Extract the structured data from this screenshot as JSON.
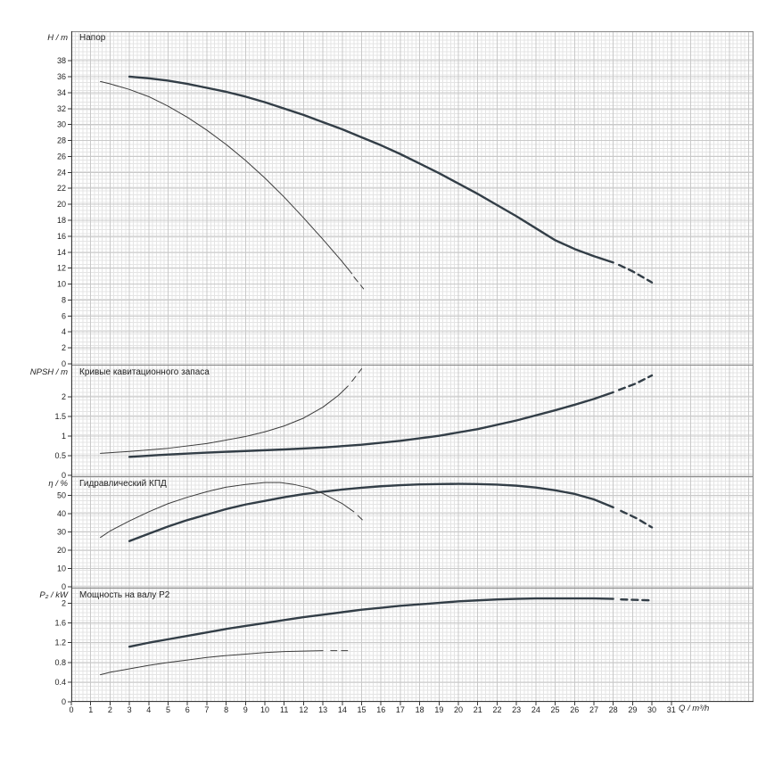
{
  "chart": {
    "x_axis": {
      "label": "Q / m³/h",
      "ticks": [
        0,
        1,
        2,
        3,
        4,
        5,
        6,
        7,
        8,
        9,
        10,
        11,
        12,
        13,
        14,
        15,
        16,
        17,
        18,
        19,
        20,
        21,
        22,
        23,
        24,
        25,
        26,
        27,
        28,
        29,
        30,
        31
      ],
      "xlim": [
        0,
        35.25
      ]
    },
    "colors": {
      "curve_main": "#333e47",
      "curve_thin": "#3c3c3c",
      "grid_minor": "#e4e4e4",
      "grid_major": "#c9c9c9",
      "frame": "#8c8c8c",
      "axis": "#3a3a3a",
      "text": "#1f1f1f"
    }
  },
  "chart_data": [
    {
      "type": "line",
      "name": "head",
      "title": "Напор",
      "ylabel": "H / m",
      "xlabel": "Q / m³/h",
      "ylim": [
        0,
        41.7
      ],
      "yticks": [
        0,
        2,
        4,
        6,
        8,
        10,
        12,
        14,
        16,
        18,
        20,
        22,
        24,
        26,
        28,
        30,
        32,
        34,
        36,
        38
      ],
      "series": [
        {
          "name": "duty-curve",
          "weight": "thick",
          "points": [
            [
              3,
              36.0
            ],
            [
              4,
              35.8
            ],
            [
              5,
              35.5
            ],
            [
              6,
              35.1
            ],
            [
              7,
              34.6
            ],
            [
              8,
              34.1
            ],
            [
              9,
              33.5
            ],
            [
              10,
              32.8
            ],
            [
              11,
              32.0
            ],
            [
              12,
              31.2
            ],
            [
              13,
              30.3
            ],
            [
              14,
              29.4
            ],
            [
              15,
              28.4
            ],
            [
              16,
              27.4
            ],
            [
              17,
              26.3
            ],
            [
              18,
              25.1
            ],
            [
              19,
              23.9
            ],
            [
              20,
              22.6
            ],
            [
              21,
              21.3
            ],
            [
              22,
              19.9
            ],
            [
              23,
              18.5
            ],
            [
              24,
              17.0
            ],
            [
              25,
              15.5
            ],
            [
              26,
              14.4
            ],
            [
              27,
              13.5
            ],
            [
              28,
              12.7
            ]
          ],
          "dashed_tail": [
            [
              28.3,
              12.4
            ],
            [
              29,
              11.6
            ],
            [
              30,
              10.2
            ]
          ]
        },
        {
          "name": "reduced-speed-curve",
          "weight": "thin",
          "points": [
            [
              1.5,
              35.4
            ],
            [
              2,
              35.1
            ],
            [
              3,
              34.4
            ],
            [
              4,
              33.5
            ],
            [
              5,
              32.3
            ],
            [
              6,
              30.9
            ],
            [
              7,
              29.3
            ],
            [
              8,
              27.5
            ],
            [
              9,
              25.5
            ],
            [
              10,
              23.3
            ],
            [
              11,
              20.9
            ],
            [
              12,
              18.3
            ],
            [
              13,
              15.6
            ],
            [
              14,
              12.8
            ],
            [
              14.5,
              11.3
            ]
          ],
          "dashed_tail": [
            [
              14.6,
              10.9
            ],
            [
              15.1,
              9.4
            ]
          ]
        }
      ]
    },
    {
      "type": "line",
      "name": "npsh",
      "title": "Кривые кавитационного запаса",
      "ylabel": "NPSH / m",
      "xlabel": "Q / m³/h",
      "ylim": [
        0,
        2.8
      ],
      "yticks": [
        0,
        0.5,
        1,
        1.5,
        2
      ],
      "series": [
        {
          "name": "duty-curve",
          "weight": "thick",
          "points": [
            [
              3,
              0.47
            ],
            [
              5,
              0.53
            ],
            [
              7,
              0.58
            ],
            [
              9,
              0.62
            ],
            [
              11,
              0.66
            ],
            [
              13,
              0.71
            ],
            [
              15,
              0.78
            ],
            [
              17,
              0.88
            ],
            [
              19,
              1.01
            ],
            [
              21,
              1.18
            ],
            [
              23,
              1.4
            ],
            [
              25,
              1.66
            ],
            [
              26,
              1.8
            ],
            [
              27,
              1.95
            ],
            [
              28,
              2.12
            ]
          ],
          "dashed_tail": [
            [
              28.3,
              2.18
            ],
            [
              29.2,
              2.35
            ],
            [
              30,
              2.55
            ]
          ]
        },
        {
          "name": "reduced-speed-curve",
          "weight": "thin",
          "points": [
            [
              1.5,
              0.56
            ],
            [
              3,
              0.61
            ],
            [
              5,
              0.69
            ],
            [
              7,
              0.81
            ],
            [
              9,
              0.99
            ],
            [
              10,
              1.11
            ],
            [
              11,
              1.26
            ],
            [
              12,
              1.46
            ],
            [
              13,
              1.74
            ],
            [
              13.8,
              2.04
            ],
            [
              14.3,
              2.28
            ]
          ],
          "dashed_tail": [
            [
              14.5,
              2.4
            ],
            [
              15,
              2.72
            ]
          ]
        }
      ]
    },
    {
      "type": "line",
      "name": "efficiency",
      "title": "Гидравлический КПД",
      "ylabel": "η / %",
      "xlabel": "Q / m³/h",
      "ylim": [
        0,
        60
      ],
      "yticks": [
        0,
        10,
        20,
        30,
        40,
        50
      ],
      "series": [
        {
          "name": "duty-curve",
          "weight": "thick",
          "points": [
            [
              3,
              25
            ],
            [
              4,
              29
            ],
            [
              5,
              33
            ],
            [
              6,
              36.5
            ],
            [
              7,
              39.5
            ],
            [
              8,
              42.5
            ],
            [
              9,
              45
            ],
            [
              10,
              47
            ],
            [
              11,
              49
            ],
            [
              12,
              50.7
            ],
            [
              13,
              52
            ],
            [
              14,
              53.2
            ],
            [
              15,
              54.2
            ],
            [
              16,
              55
            ],
            [
              17,
              55.6
            ],
            [
              18,
              56
            ],
            [
              19,
              56.2
            ],
            [
              20,
              56.3
            ],
            [
              21,
              56.2
            ],
            [
              22,
              55.9
            ],
            [
              23,
              55.3
            ],
            [
              24,
              54.3
            ],
            [
              25,
              52.8
            ],
            [
              26,
              50.8
            ],
            [
              27,
              47.8
            ],
            [
              28,
              43.5
            ]
          ],
          "dashed_tail": [
            [
              28.4,
              41.5
            ],
            [
              29.2,
              37.5
            ],
            [
              30,
              32.5
            ]
          ]
        },
        {
          "name": "reduced-speed-curve",
          "weight": "thin",
          "points": [
            [
              1.5,
              27
            ],
            [
              2,
              30.5
            ],
            [
              3,
              36
            ],
            [
              4,
              41
            ],
            [
              5,
              45.5
            ],
            [
              6,
              49
            ],
            [
              7,
              52
            ],
            [
              8,
              54.5
            ],
            [
              9,
              56
            ],
            [
              10,
              57
            ],
            [
              10.8,
              57
            ],
            [
              11.5,
              56
            ],
            [
              12.3,
              54
            ],
            [
              13,
              51
            ],
            [
              14,
              45.5
            ],
            [
              14.6,
              41
            ]
          ],
          "dashed_tail": [
            [
              14.8,
              39
            ],
            [
              15.2,
              35
            ]
          ]
        }
      ]
    },
    {
      "type": "line",
      "name": "power",
      "title": "Мощность на валу P2",
      "ylabel": "P₂ / kW",
      "xlabel": "Q / m³/h",
      "ylim": [
        0,
        2.3
      ],
      "yticks": [
        0,
        0.4,
        0.8,
        1.2,
        1.6,
        2
      ],
      "series": [
        {
          "name": "duty-curve",
          "weight": "thick",
          "points": [
            [
              3,
              1.12
            ],
            [
              4,
              1.2
            ],
            [
              5,
              1.27
            ],
            [
              6,
              1.34
            ],
            [
              7,
              1.41
            ],
            [
              8,
              1.48
            ],
            [
              9,
              1.54
            ],
            [
              10,
              1.6
            ],
            [
              11,
              1.66
            ],
            [
              12,
              1.72
            ],
            [
              13,
              1.77
            ],
            [
              14,
              1.82
            ],
            [
              15,
              1.87
            ],
            [
              16,
              1.91
            ],
            [
              17,
              1.95
            ],
            [
              18,
              1.98
            ],
            [
              19,
              2.01
            ],
            [
              20,
              2.04
            ],
            [
              21,
              2.06
            ],
            [
              22,
              2.08
            ],
            [
              23,
              2.09
            ],
            [
              24,
              2.1
            ],
            [
              25,
              2.1
            ],
            [
              26,
              2.1
            ],
            [
              27,
              2.1
            ],
            [
              28,
              2.09
            ]
          ],
          "dashed_tail": [
            [
              28.4,
              2.08
            ],
            [
              29.2,
              2.07
            ],
            [
              30,
              2.06
            ]
          ]
        },
        {
          "name": "reduced-speed-curve",
          "weight": "thin",
          "points": [
            [
              1.5,
              0.55
            ],
            [
              2,
              0.6
            ],
            [
              3,
              0.67
            ],
            [
              4,
              0.74
            ],
            [
              5,
              0.8
            ],
            [
              6,
              0.85
            ],
            [
              7,
              0.9
            ],
            [
              8,
              0.94
            ],
            [
              9,
              0.97
            ],
            [
              10,
              1.0
            ],
            [
              11,
              1.02
            ],
            [
              12,
              1.03
            ],
            [
              13,
              1.04
            ]
          ],
          "dashed_tail": [
            [
              13.4,
              1.04
            ],
            [
              14.5,
              1.04
            ]
          ]
        }
      ]
    }
  ]
}
